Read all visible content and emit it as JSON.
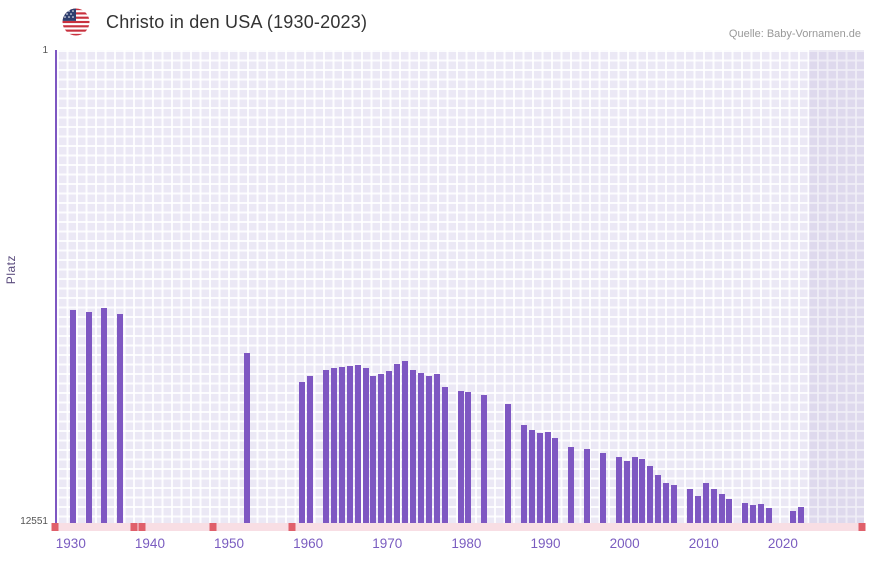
{
  "header": {
    "title": "Christo in den USA (1930-2023)",
    "source": "Quelle: Baby-Vornamen.de",
    "flag_icon": "us-flag-icon"
  },
  "colors": {
    "bar": "#7e57c2",
    "axis_line": "#7e57c2",
    "x_tick_label": "#7a5cc0",
    "plot_background": "#ebe8f5",
    "gridline": "#ffffff",
    "no_data_band": "rgba(110,92,165,0.10)",
    "no_rank_strip": "#f8dee4",
    "no_rank_marker": "#e0606b"
  },
  "chart_data": {
    "type": "bar",
    "title": "Christo in den USA (1930-2023)",
    "xlabel": "",
    "ylabel": "Platz",
    "legend": null,
    "grid": true,
    "y_axis": {
      "min": 1,
      "max": 12551,
      "inverted": true,
      "top_label": "1",
      "bottom_label": "12551"
    },
    "x_axis": {
      "year_min": 1928,
      "year_max": 2030,
      "tick_labels": [
        "1930",
        "1940",
        "1950",
        "1960",
        "1970",
        "1980",
        "1990",
        "2000",
        "2010",
        "2020"
      ]
    },
    "bar_color": "#7e57c2",
    "points": [
      {
        "year": 1930,
        "rank": 6900
      },
      {
        "year": 1932,
        "rank": 6950
      },
      {
        "year": 1934,
        "rank": 6850
      },
      {
        "year": 1936,
        "rank": 7000
      },
      {
        "year": 1952,
        "rank": 8050
      },
      {
        "year": 1959,
        "rank": 8800
      },
      {
        "year": 1960,
        "rank": 8650
      },
      {
        "year": 1962,
        "rank": 8500
      },
      {
        "year": 1963,
        "rank": 8430
      },
      {
        "year": 1964,
        "rank": 8400
      },
      {
        "year": 1965,
        "rank": 8380
      },
      {
        "year": 1966,
        "rank": 8360
      },
      {
        "year": 1967,
        "rank": 8440
      },
      {
        "year": 1968,
        "rank": 8640
      },
      {
        "year": 1969,
        "rank": 8610
      },
      {
        "year": 1970,
        "rank": 8520
      },
      {
        "year": 1971,
        "rank": 8340
      },
      {
        "year": 1972,
        "rank": 8260
      },
      {
        "year": 1973,
        "rank": 8480
      },
      {
        "year": 1974,
        "rank": 8560
      },
      {
        "year": 1975,
        "rank": 8640
      },
      {
        "year": 1976,
        "rank": 8610
      },
      {
        "year": 1977,
        "rank": 8940
      },
      {
        "year": 1979,
        "rank": 9050
      },
      {
        "year": 1980,
        "rank": 9070
      },
      {
        "year": 1982,
        "rank": 9150
      },
      {
        "year": 1985,
        "rank": 9400
      },
      {
        "year": 1987,
        "rank": 9950
      },
      {
        "year": 1988,
        "rank": 10080
      },
      {
        "year": 1989,
        "rank": 10150
      },
      {
        "year": 1990,
        "rank": 10130
      },
      {
        "year": 1991,
        "rank": 10290
      },
      {
        "year": 1993,
        "rank": 10540
      },
      {
        "year": 1995,
        "rank": 10590
      },
      {
        "year": 1997,
        "rank": 10690
      },
      {
        "year": 1999,
        "rank": 10790
      },
      {
        "year": 2000,
        "rank": 10900
      },
      {
        "year": 2001,
        "rank": 10790
      },
      {
        "year": 2002,
        "rank": 10850
      },
      {
        "year": 2003,
        "rank": 11040
      },
      {
        "year": 2004,
        "rank": 11290
      },
      {
        "year": 2005,
        "rank": 11480
      },
      {
        "year": 2006,
        "rank": 11530
      },
      {
        "year": 2008,
        "rank": 11660
      },
      {
        "year": 2009,
        "rank": 11840
      },
      {
        "year": 2010,
        "rank": 11500
      },
      {
        "year": 2011,
        "rank": 11660
      },
      {
        "year": 2012,
        "rank": 11770
      },
      {
        "year": 2013,
        "rank": 11920
      },
      {
        "year": 2015,
        "rank": 12030
      },
      {
        "year": 2016,
        "rank": 12080
      },
      {
        "year": 2017,
        "rank": 12050
      },
      {
        "year": 2018,
        "rank": 12150
      },
      {
        "year": 2021,
        "rank": 12240
      },
      {
        "year": 2022,
        "rank": 12120
      }
    ],
    "no_rank_marker_years": [
      1928,
      1938,
      1939,
      1948,
      1958,
      2030
    ],
    "future_band": {
      "start_year": 2023,
      "end_year": 2030
    }
  }
}
